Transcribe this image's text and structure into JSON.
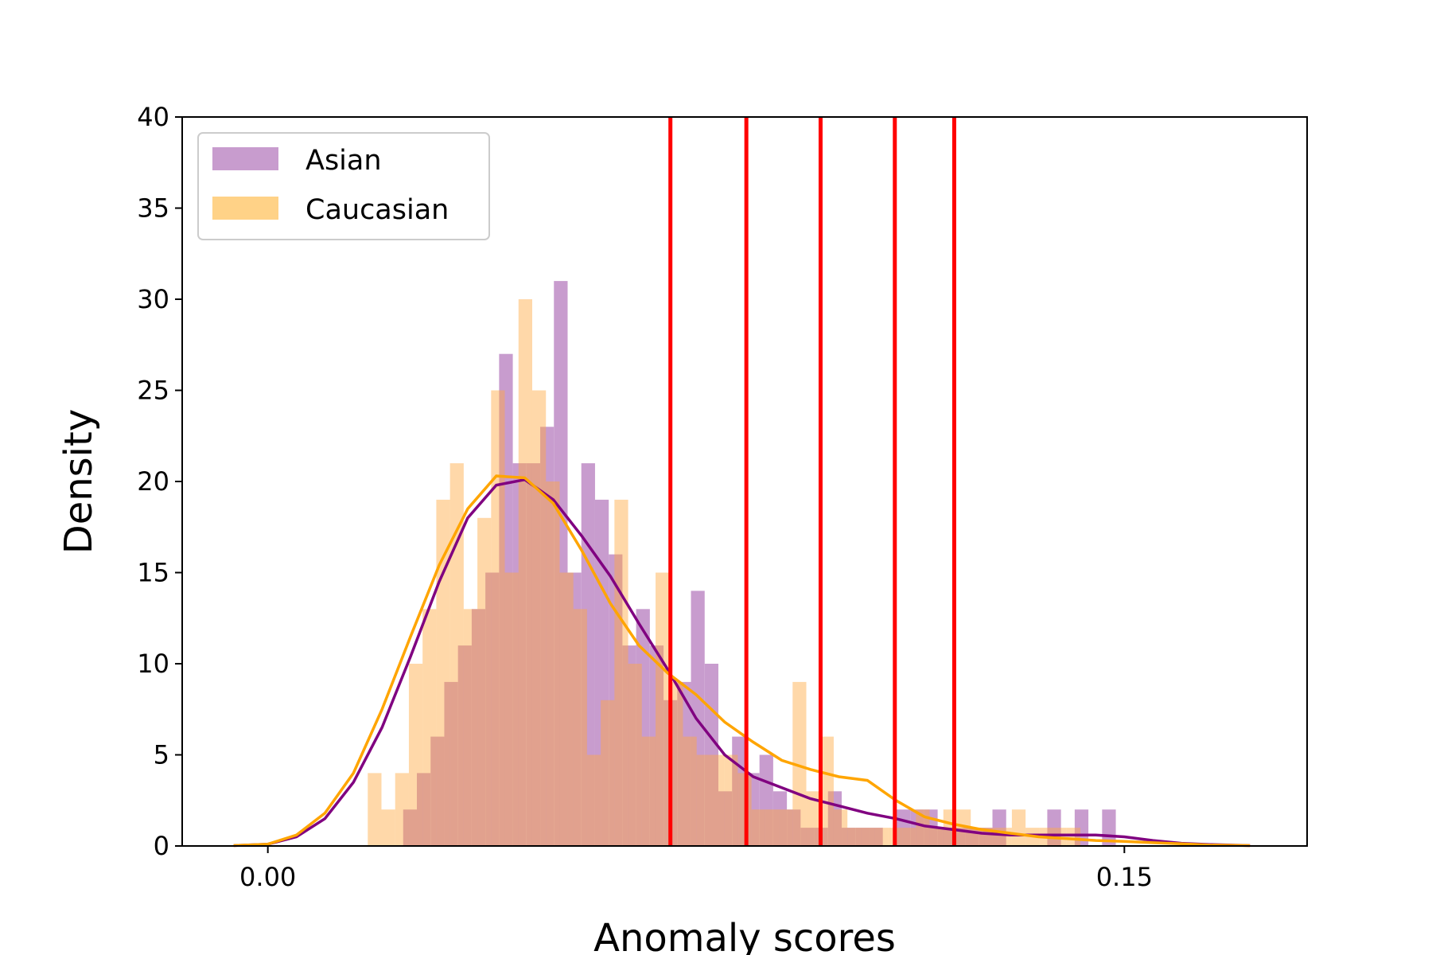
{
  "chart_data": {
    "type": "histogram",
    "xlabel": "Anomaly scores",
    "ylabel": "Density",
    "xlim": [
      -0.015,
      0.182
    ],
    "ylim": [
      0,
      40
    ],
    "x_ticks": [
      0.0,
      0.15
    ],
    "x_tick_labels": [
      "0.00",
      "0.15"
    ],
    "y_ticks": [
      0,
      5,
      10,
      15,
      20,
      25,
      30,
      35,
      40
    ],
    "y_tick_labels": [
      "0",
      "5",
      "10",
      "15",
      "20",
      "25",
      "30",
      "35",
      "40"
    ],
    "grid": false,
    "legend": {
      "position": "top-left"
    },
    "bin_width": 0.0024,
    "series": [
      {
        "name": "Asian",
        "color": "#c89cce",
        "bins": [
          {
            "x0": 0.0213,
            "h": 2
          },
          {
            "x0": 0.025,
            "h": 4
          },
          {
            "x0": 0.0262,
            "h": 2
          },
          {
            "x0": 0.0265,
            "h": 2
          },
          {
            "x0": 0.025,
            "h": 4
          },
          {
            "x0": 0.0262,
            "h": 2
          },
          {
            "x0": 0.0265,
            "h": 2
          },
          {
            "x0": 0.025,
            "h": 4
          },
          {
            "x0": 0.0262,
            "h": 2
          },
          {
            "x0": 0.0262,
            "h": 2
          },
          {
            "x0": 0.0255,
            "h": 4
          },
          {
            "x0": 0.0262,
            "h": 2
          },
          {
            "x0": 0.0262,
            "h": 2
          },
          {
            "x0": 0.025,
            "h": 4
          },
          {
            "x0": 0.0262,
            "h": 2
          },
          {
            "x0": 0.0262,
            "h": 2
          },
          {
            "x0": 0.025,
            "h": 4
          },
          {
            "x0": 0.0262,
            "h": 2
          }
        ],
        "kde_color": "#800080",
        "kde": [
          [
            -0.006,
            0.02
          ],
          [
            0.0,
            0.1
          ],
          [
            0.005,
            0.5
          ],
          [
            0.01,
            1.5
          ],
          [
            0.015,
            3.5
          ],
          [
            0.02,
            6.5
          ],
          [
            0.025,
            10.4
          ],
          [
            0.03,
            14.5
          ],
          [
            0.035,
            18.0
          ],
          [
            0.04,
            19.8
          ],
          [
            0.045,
            20.1
          ],
          [
            0.05,
            19.0
          ],
          [
            0.055,
            17.0
          ],
          [
            0.06,
            14.8
          ],
          [
            0.065,
            12.2
          ],
          [
            0.07,
            9.7
          ],
          [
            0.075,
            7.0
          ],
          [
            0.08,
            5.0
          ],
          [
            0.085,
            3.8
          ],
          [
            0.09,
            3.2
          ],
          [
            0.095,
            2.6
          ],
          [
            0.1,
            2.2
          ],
          [
            0.105,
            1.8
          ],
          [
            0.11,
            1.5
          ],
          [
            0.115,
            1.1
          ],
          [
            0.12,
            0.9
          ],
          [
            0.125,
            0.7
          ],
          [
            0.13,
            0.6
          ],
          [
            0.135,
            0.6
          ],
          [
            0.14,
            0.6
          ],
          [
            0.145,
            0.6
          ],
          [
            0.15,
            0.5
          ],
          [
            0.155,
            0.3
          ],
          [
            0.16,
            0.15
          ],
          [
            0.165,
            0.08
          ],
          [
            0.172,
            0.02
          ]
        ]
      },
      {
        "name": "Caucasian",
        "color": "#ffd287",
        "bins": [],
        "kde_color": "#ffa500",
        "kde": [
          [
            -0.006,
            0.02
          ],
          [
            0.0,
            0.1
          ],
          [
            0.005,
            0.6
          ],
          [
            0.01,
            1.8
          ],
          [
            0.015,
            4.0
          ],
          [
            0.02,
            7.5
          ],
          [
            0.025,
            11.5
          ],
          [
            0.03,
            15.4
          ],
          [
            0.035,
            18.5
          ],
          [
            0.04,
            20.3
          ],
          [
            0.045,
            20.2
          ],
          [
            0.05,
            18.8
          ],
          [
            0.055,
            16.2
          ],
          [
            0.06,
            13.3
          ],
          [
            0.065,
            11.0
          ],
          [
            0.07,
            9.5
          ],
          [
            0.075,
            8.3
          ],
          [
            0.08,
            6.8
          ],
          [
            0.085,
            5.7
          ],
          [
            0.09,
            4.7
          ],
          [
            0.095,
            4.2
          ],
          [
            0.1,
            3.8
          ],
          [
            0.105,
            3.6
          ],
          [
            0.11,
            2.5
          ],
          [
            0.115,
            1.6
          ],
          [
            0.12,
            1.2
          ],
          [
            0.125,
            0.9
          ],
          [
            0.13,
            0.7
          ],
          [
            0.135,
            0.5
          ],
          [
            0.14,
            0.4
          ],
          [
            0.145,
            0.3
          ],
          [
            0.15,
            0.25
          ],
          [
            0.155,
            0.18
          ],
          [
            0.16,
            0.12
          ],
          [
            0.165,
            0.05
          ],
          [
            0.172,
            0.02
          ]
        ]
      }
    ],
    "hist_asian": [
      [
        0.0213,
        0
      ],
      [
        0.0237,
        2
      ],
      [
        0.0261,
        4
      ],
      [
        0.0285,
        6
      ],
      [
        0.0309,
        9
      ],
      [
        0.0333,
        11
      ],
      [
        0.0357,
        13
      ],
      [
        0.0381,
        15
      ],
      [
        0.0405,
        27
      ],
      [
        0.0429,
        21
      ],
      [
        0.0453,
        21
      ],
      [
        0.0477,
        23
      ],
      [
        0.0501,
        31
      ],
      [
        0.0525,
        15
      ],
      [
        0.0549,
        21
      ],
      [
        0.0573,
        19
      ],
      [
        0.0597,
        16
      ],
      [
        0.0621,
        11
      ],
      [
        0.0645,
        13
      ],
      [
        0.0669,
        11
      ],
      [
        0.0693,
        8
      ],
      [
        0.0717,
        9
      ],
      [
        0.0741,
        14
      ],
      [
        0.0765,
        10
      ],
      [
        0.0789,
        3
      ],
      [
        0.0813,
        6
      ],
      [
        0.0837,
        4
      ],
      [
        0.0861,
        5
      ],
      [
        0.0885,
        3
      ],
      [
        0.0909,
        2
      ],
      [
        0.0933,
        1
      ],
      [
        0.0957,
        1
      ],
      [
        0.0981,
        3
      ],
      [
        0.1005,
        1
      ],
      [
        0.1029,
        1
      ],
      [
        0.1053,
        1
      ],
      [
        0.1077,
        0
      ],
      [
        0.1101,
        2
      ],
      [
        0.1125,
        2
      ],
      [
        0.1149,
        2
      ],
      [
        0.1173,
        1
      ],
      [
        0.1197,
        1
      ],
      [
        0.1221,
        1
      ],
      [
        0.1245,
        1
      ],
      [
        0.1269,
        2
      ],
      [
        0.1293,
        0
      ],
      [
        0.1317,
        0
      ],
      [
        0.1341,
        0
      ],
      [
        0.1365,
        2
      ],
      [
        0.1389,
        0
      ],
      [
        0.1413,
        2
      ],
      [
        0.1437,
        0
      ],
      [
        0.1461,
        2
      ]
    ],
    "hist_caucasian": [
      [
        0.0175,
        4
      ],
      [
        0.0199,
        2
      ],
      [
        0.0223,
        4
      ],
      [
        0.0247,
        10
      ],
      [
        0.0271,
        13
      ],
      [
        0.0295,
        19
      ],
      [
        0.0319,
        21
      ],
      [
        0.0343,
        13
      ],
      [
        0.0367,
        18
      ],
      [
        0.0391,
        25
      ],
      [
        0.0415,
        15
      ],
      [
        0.0439,
        30
      ],
      [
        0.0463,
        25
      ],
      [
        0.0487,
        20
      ],
      [
        0.0511,
        15
      ],
      [
        0.0535,
        13
      ],
      [
        0.0559,
        5
      ],
      [
        0.0583,
        8
      ],
      [
        0.0607,
        19
      ],
      [
        0.0631,
        10
      ],
      [
        0.0655,
        6
      ],
      [
        0.0679,
        15
      ],
      [
        0.0703,
        9
      ],
      [
        0.0727,
        6
      ],
      [
        0.0751,
        5
      ],
      [
        0.0775,
        5
      ],
      [
        0.0799,
        5
      ],
      [
        0.0823,
        4
      ],
      [
        0.0847,
        2
      ],
      [
        0.0871,
        2
      ],
      [
        0.0895,
        2
      ],
      [
        0.0919,
        9
      ],
      [
        0.0943,
        3
      ],
      [
        0.0967,
        6
      ],
      [
        0.0991,
        2
      ],
      [
        0.1015,
        1
      ],
      [
        0.1039,
        1
      ],
      [
        0.1063,
        1
      ],
      [
        0.1087,
        1
      ],
      [
        0.1111,
        1
      ],
      [
        0.1135,
        2
      ],
      [
        0.1159,
        1
      ],
      [
        0.1183,
        2
      ],
      [
        0.1207,
        2
      ],
      [
        0.1231,
        1
      ],
      [
        0.1255,
        1
      ],
      [
        0.1279,
        1
      ],
      [
        0.1303,
        2
      ],
      [
        0.1327,
        1
      ],
      [
        0.1351,
        1
      ],
      [
        0.1375,
        1
      ],
      [
        0.1399,
        1
      ]
    ],
    "thresholds": [
      0.0705,
      0.0838,
      0.0968,
      0.1098,
      0.1202
    ],
    "threshold_color": "#ff0000"
  }
}
